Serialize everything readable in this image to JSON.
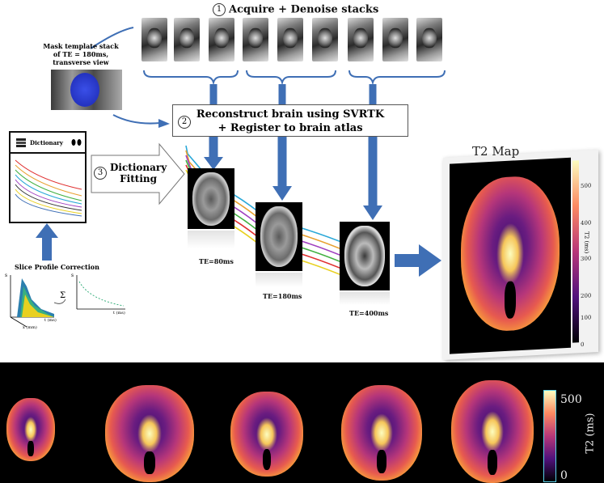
{
  "step1": {
    "number": "1",
    "title": "Acquire + Denoise stacks"
  },
  "mask_label": "Mask template stack of TE = 180ms, transverse view",
  "step2": {
    "number": "2",
    "line1": "Reconstruct brain using SVRTK",
    "line2": "+ Register to brain atlas"
  },
  "step3": {
    "number": "3",
    "line1": "Dictionary",
    "line2": "Fitting"
  },
  "dictionary": {
    "label": "Dictionary"
  },
  "slice_profile": {
    "label": "Slice Profile Correction",
    "axis_left_s": "s",
    "axis_left_x": "x (mm)",
    "axis_left_t": "t (ms)",
    "axis_right_s": "s",
    "axis_right_t": "t (ms)",
    "sum_symbol": "Σ"
  },
  "mri_images": [
    {
      "te_label": "TE=80ms"
    },
    {
      "te_label": "TE=180ms"
    },
    {
      "te_label": "TE=400ms"
    }
  ],
  "t2map": {
    "title": "T2 Map",
    "colorbar_label": "T2 (ms)",
    "colorbar_ticks": [
      "500",
      "400",
      "300",
      "200",
      "100",
      "0"
    ]
  },
  "bottom": {
    "colorbar_label": "T2 (ms)",
    "tick_max": "500",
    "tick_min": "0"
  },
  "colors": {
    "arrow_blue": "#3f6fb5",
    "magma_dark": "#000004",
    "magma_mid": "#b6367a",
    "magma_light": "#fcfdbf"
  }
}
